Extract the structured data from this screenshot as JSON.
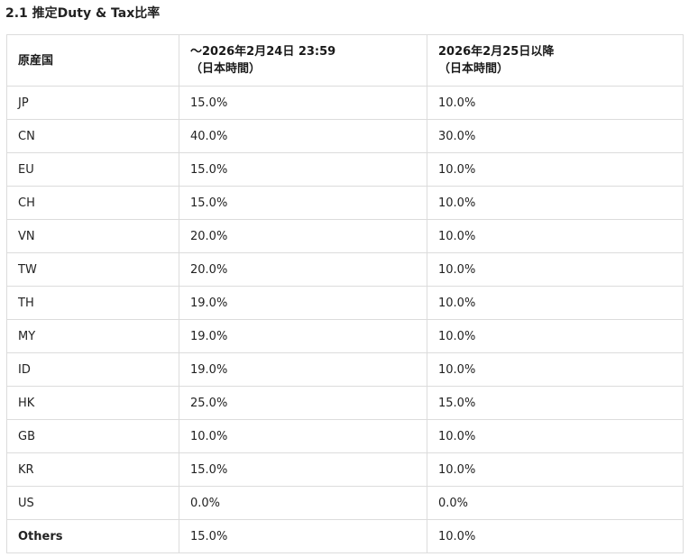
{
  "section": {
    "title": "2.1 推定Duty & Tax比率"
  },
  "table": {
    "headers": [
      {
        "line1": "原産国",
        "line2": ""
      },
      {
        "line1": "～2026年2月24日 23:59",
        "line2": "（日本時間）"
      },
      {
        "line1": "2026年2月25日以降",
        "line2": "（日本時間）"
      }
    ],
    "rows": [
      {
        "country": "JP",
        "before": "15.0%",
        "after": "10.0%"
      },
      {
        "country": "CN",
        "before": "40.0%",
        "after": "30.0%"
      },
      {
        "country": "EU",
        "before": "15.0%",
        "after": "10.0%"
      },
      {
        "country": "CH",
        "before": "15.0%",
        "after": "10.0%"
      },
      {
        "country": "VN",
        "before": "20.0%",
        "after": "10.0%"
      },
      {
        "country": "TW",
        "before": "20.0%",
        "after": "10.0%"
      },
      {
        "country": "TH",
        "before": "19.0%",
        "after": "10.0%"
      },
      {
        "country": "MY",
        "before": "19.0%",
        "after": "10.0%"
      },
      {
        "country": "ID",
        "before": "19.0%",
        "after": "10.0%"
      },
      {
        "country": "HK",
        "before": "25.0%",
        "after": "15.0%"
      },
      {
        "country": "GB",
        "before": "10.0%",
        "after": "10.0%"
      },
      {
        "country": "KR",
        "before": "15.0%",
        "after": "10.0%"
      },
      {
        "country": "US",
        "before": "0.0%",
        "after": "0.0%"
      },
      {
        "country": "Others",
        "before": "15.0%",
        "after": "10.0%"
      }
    ]
  }
}
